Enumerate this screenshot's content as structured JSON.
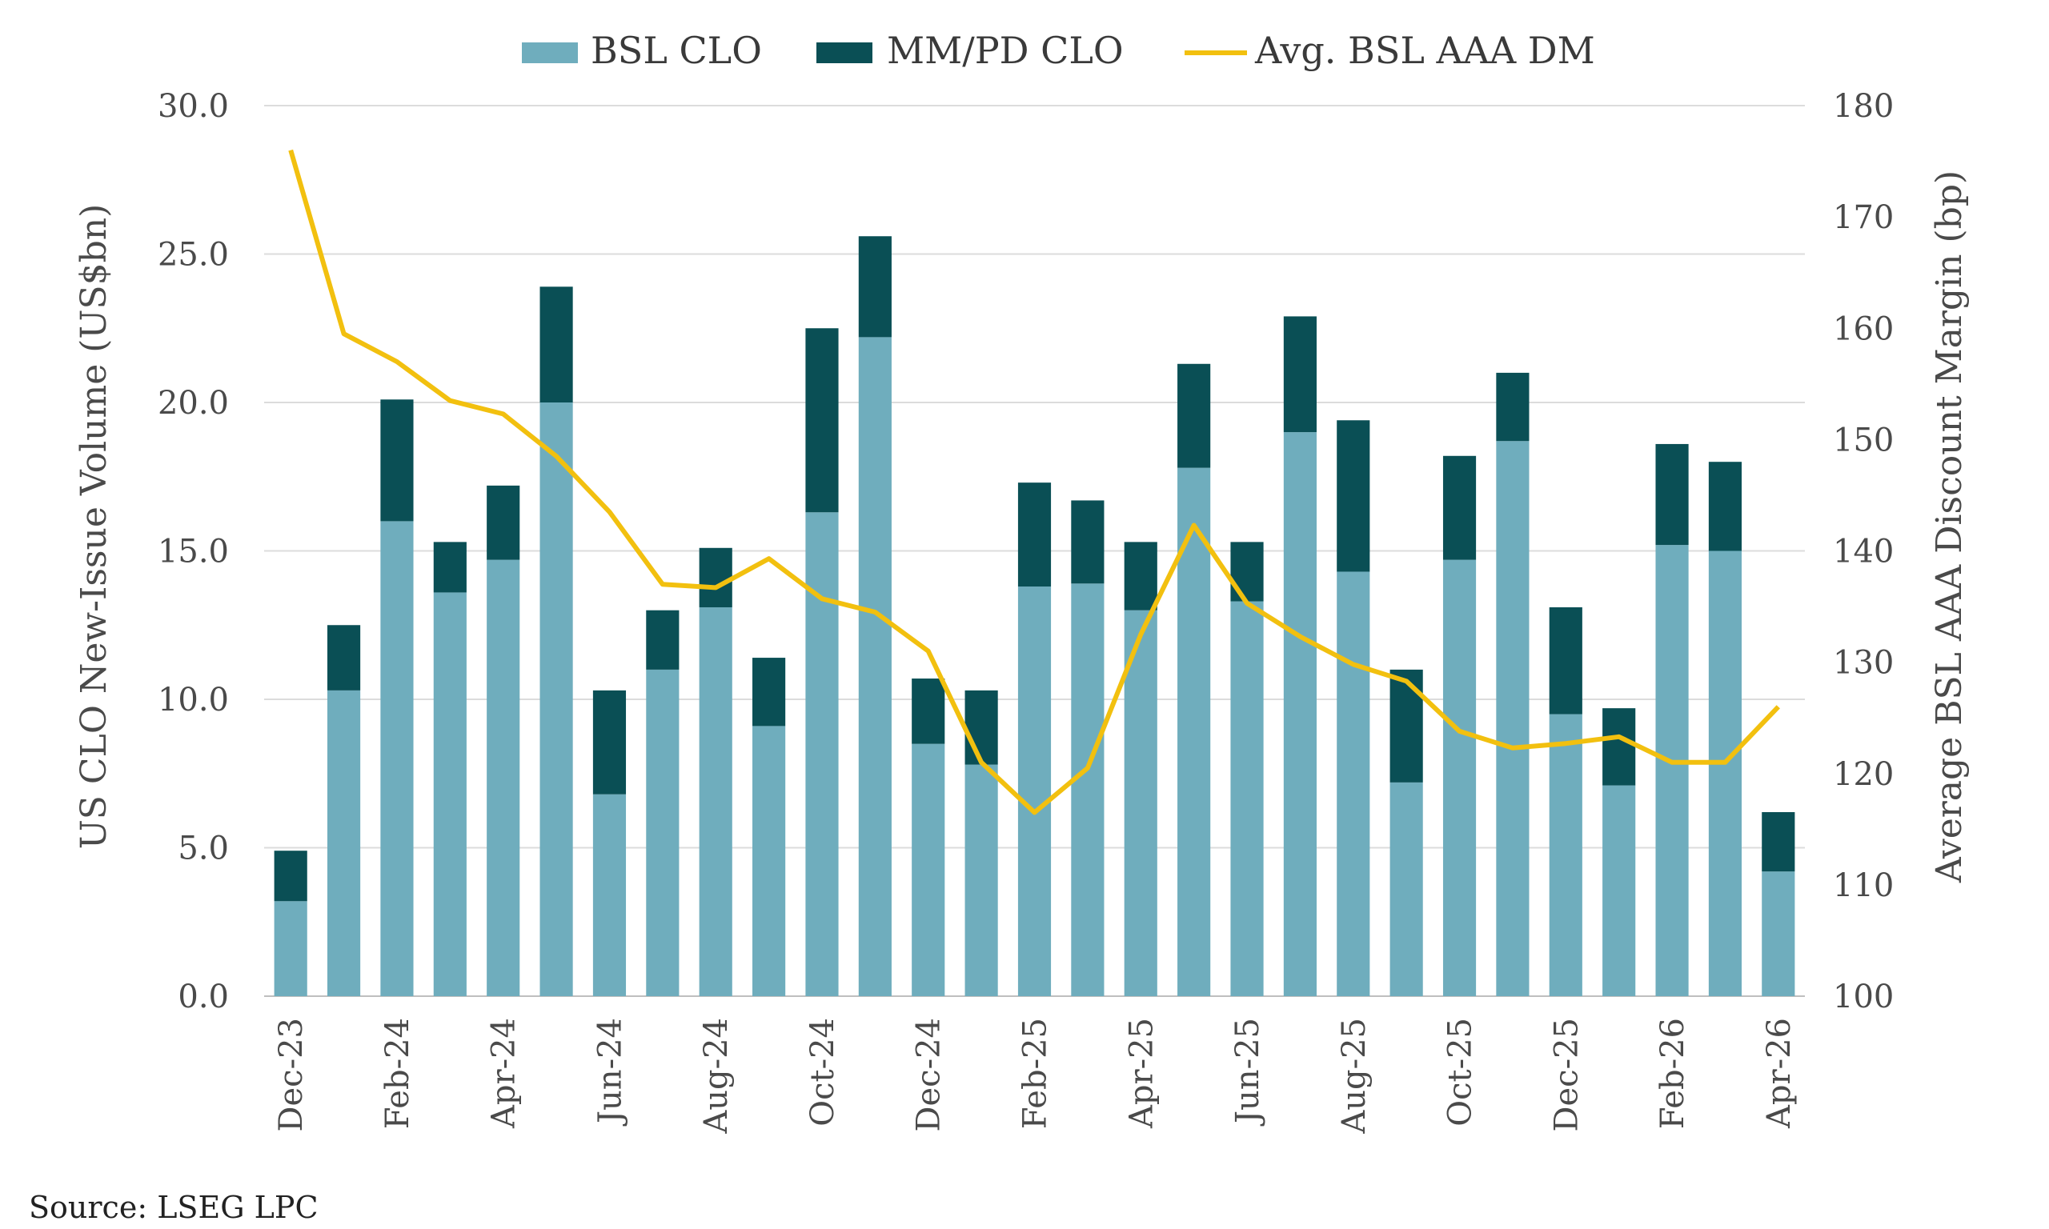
{
  "chart_data": {
    "type": "bar",
    "stacked": true,
    "categories": [
      "Dec-23",
      "Jan-24",
      "Feb-24",
      "Mar-24",
      "Apr-24",
      "May-24",
      "Jun-24",
      "Jul-24",
      "Aug-24",
      "Sep-24",
      "Oct-24",
      "Nov-24",
      "Dec-24",
      "Jan-25",
      "Feb-25",
      "Mar-25",
      "Apr-25",
      "May-25",
      "Jun-25",
      "Jul-25",
      "Aug-25",
      "Sep-25",
      "Oct-25",
      "Nov-25",
      "Dec-25",
      "Jan-26",
      "Feb-26",
      "Mar-26",
      "Apr-26"
    ],
    "x_tick_labels": [
      "Dec-23",
      "Feb-24",
      "Apr-24",
      "Jun-24",
      "Aug-24",
      "Oct-24",
      "Dec-24",
      "Feb-25",
      "Apr-25",
      "Jun-25",
      "Aug-25",
      "Oct-25",
      "Dec-25",
      "Feb-26",
      "Apr-26"
    ],
    "series": [
      {
        "name": "BSL CLO",
        "axis": "left",
        "kind": "bar",
        "color": "#6fadbd",
        "values": [
          3.2,
          10.3,
          16.0,
          13.6,
          14.7,
          20.0,
          6.8,
          11.0,
          13.1,
          9.1,
          16.3,
          22.2,
          8.5,
          7.8,
          13.8,
          13.9,
          13.0,
          17.8,
          13.3,
          19.0,
          14.3,
          7.2,
          14.7,
          18.7,
          9.5,
          7.1,
          15.2,
          15.0,
          4.2
        ]
      },
      {
        "name": "MM/PD CLO",
        "axis": "left",
        "kind": "bar",
        "color": "#0a4f55",
        "values": [
          1.7,
          2.2,
          4.1,
          1.7,
          2.5,
          3.9,
          3.5,
          2.0,
          2.0,
          2.3,
          6.2,
          3.4,
          2.2,
          2.5,
          3.5,
          2.8,
          2.3,
          3.5,
          2.0,
          3.9,
          5.1,
          3.8,
          3.5,
          2.3,
          3.6,
          2.6,
          3.4,
          3.0,
          2.0
        ]
      },
      {
        "name": "Avg. BSL AAA DM",
        "axis": "right",
        "kind": "line",
        "color": "#f2c00f",
        "values": [
          176,
          159.5,
          157,
          153.5,
          152.3,
          148.5,
          143.5,
          137,
          136.7,
          139.3,
          135.7,
          134.5,
          131,
          121,
          116.5,
          120.5,
          132.5,
          142.3,
          135.3,
          132.3,
          129.8,
          128.3,
          123.8,
          122.3,
          122.7,
          123.3,
          121,
          121,
          126
        ]
      }
    ],
    "ylabel_left": "US CLO New-Issue Volume (US$bn)",
    "ylabel_right": "Average BSL AAA Discount Margin (bp)",
    "ylim_left": [
      0,
      30
    ],
    "ylim_right": [
      100,
      180
    ],
    "yticks_left": [
      "0.0",
      "5.0",
      "10.0",
      "15.0",
      "20.0",
      "25.0",
      "30.0"
    ],
    "yticks_right": [
      "100",
      "110",
      "120",
      "130",
      "140",
      "150",
      "160",
      "170",
      "180"
    ],
    "grid": true,
    "legend_position": "top"
  },
  "legend": {
    "bsl": "BSL CLO",
    "mmpd": "MM/PD CLO",
    "dm": "Avg. BSL AAA DM"
  },
  "source": "Source: LSEG LPC"
}
